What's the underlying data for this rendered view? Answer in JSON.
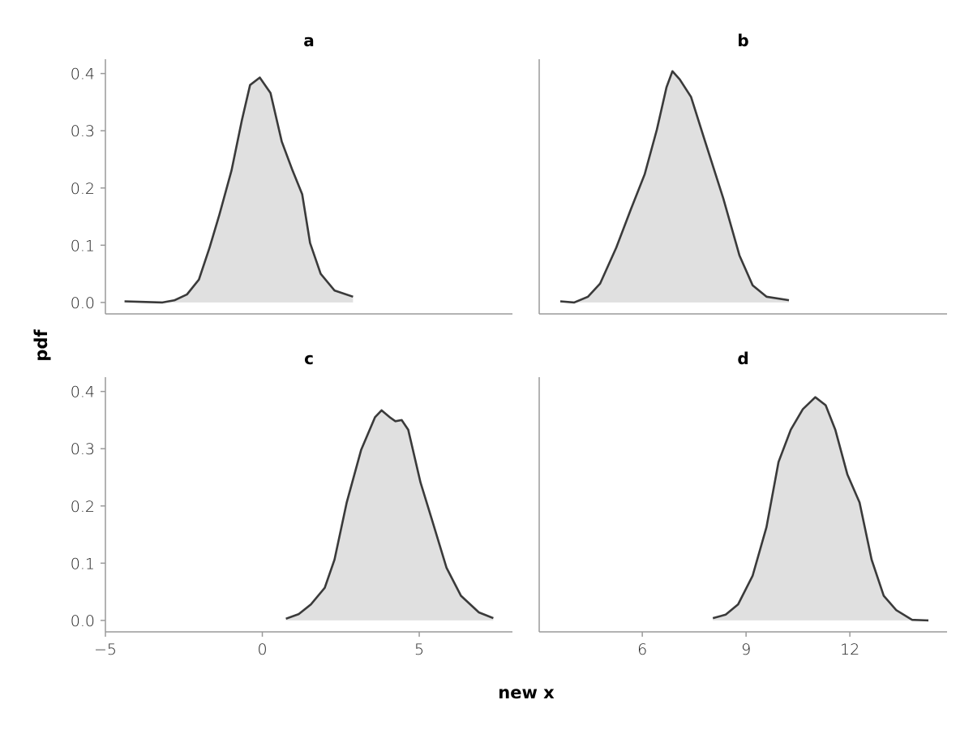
{
  "chart_data": {
    "type": "area",
    "xlabel": "new x",
    "ylabel": "pdf",
    "ylim": [
      -0.02,
      0.425
    ],
    "yticks": [
      0.0,
      0.1,
      0.2,
      0.3,
      0.4
    ],
    "ytick_labels": [
      "0.0",
      "0.1",
      "0.2",
      "0.3",
      "0.4"
    ],
    "grid": false,
    "line_color": "#3a3a3a",
    "fill_color": "#e0e0e0",
    "axis_color": "#9a9a9a",
    "facets": [
      {
        "title": "a",
        "column": 1,
        "row": 1,
        "xlim": [
          -5,
          7.97
        ],
        "x": [
          -4.39,
          -3.82,
          -3.18,
          -2.79,
          -2.4,
          -2.02,
          -1.68,
          -1.37,
          -0.98,
          -0.65,
          -0.39,
          -0.08,
          0.26,
          0.62,
          0.96,
          1.27,
          1.52,
          1.86,
          2.3,
          2.89
        ],
        "y": [
          0.002,
          0.001,
          0.0,
          0.004,
          0.014,
          0.04,
          0.096,
          0.153,
          0.231,
          0.319,
          0.38,
          0.393,
          0.366,
          0.281,
          0.231,
          0.189,
          0.104,
          0.05,
          0.021,
          0.01
        ]
      },
      {
        "title": "b",
        "column": 2,
        "row": 1,
        "xlim": [
          3.02,
          14.81
        ],
        "x": [
          3.63,
          4.03,
          4.43,
          4.78,
          5.25,
          5.67,
          6.07,
          6.42,
          6.7,
          6.87,
          7.08,
          7.41,
          7.78,
          8.34,
          8.81,
          9.19,
          9.59,
          10.24
        ],
        "y": [
          0.002,
          0.0,
          0.01,
          0.033,
          0.096,
          0.163,
          0.224,
          0.302,
          0.376,
          0.404,
          0.39,
          0.359,
          0.288,
          0.182,
          0.082,
          0.03,
          0.01,
          0.004
        ]
      },
      {
        "title": "c",
        "column": 1,
        "row": 2,
        "xlim": [
          -5,
          7.97
        ],
        "xticks": [
          -5,
          0,
          5
        ],
        "xtick_labels": [
          "−5",
          "0",
          "5"
        ],
        "x": [
          0.75,
          1.16,
          1.55,
          1.99,
          2.3,
          2.69,
          3.15,
          3.59,
          3.8,
          4.06,
          4.24,
          4.44,
          4.65,
          5.04,
          5.4,
          5.87,
          6.33,
          6.9,
          7.36
        ],
        "y": [
          0.003,
          0.011,
          0.028,
          0.057,
          0.106,
          0.206,
          0.298,
          0.355,
          0.367,
          0.355,
          0.348,
          0.35,
          0.333,
          0.241,
          0.177,
          0.092,
          0.043,
          0.014,
          0.004
        ]
      },
      {
        "title": "d",
        "column": 2,
        "row": 2,
        "xlim": [
          3.02,
          14.81
        ],
        "xticks": [
          6,
          9,
          12
        ],
        "xtick_labels": [
          "6",
          "9",
          "12"
        ],
        "x": [
          8.04,
          8.41,
          8.77,
          9.19,
          9.59,
          9.94,
          10.29,
          10.64,
          11.0,
          11.3,
          11.58,
          11.93,
          12.28,
          12.63,
          12.98,
          13.34,
          13.8,
          14.27
        ],
        "y": [
          0.004,
          0.01,
          0.028,
          0.078,
          0.163,
          0.277,
          0.333,
          0.369,
          0.39,
          0.376,
          0.333,
          0.255,
          0.206,
          0.106,
          0.043,
          0.018,
          0.001,
          0.0
        ]
      }
    ]
  }
}
